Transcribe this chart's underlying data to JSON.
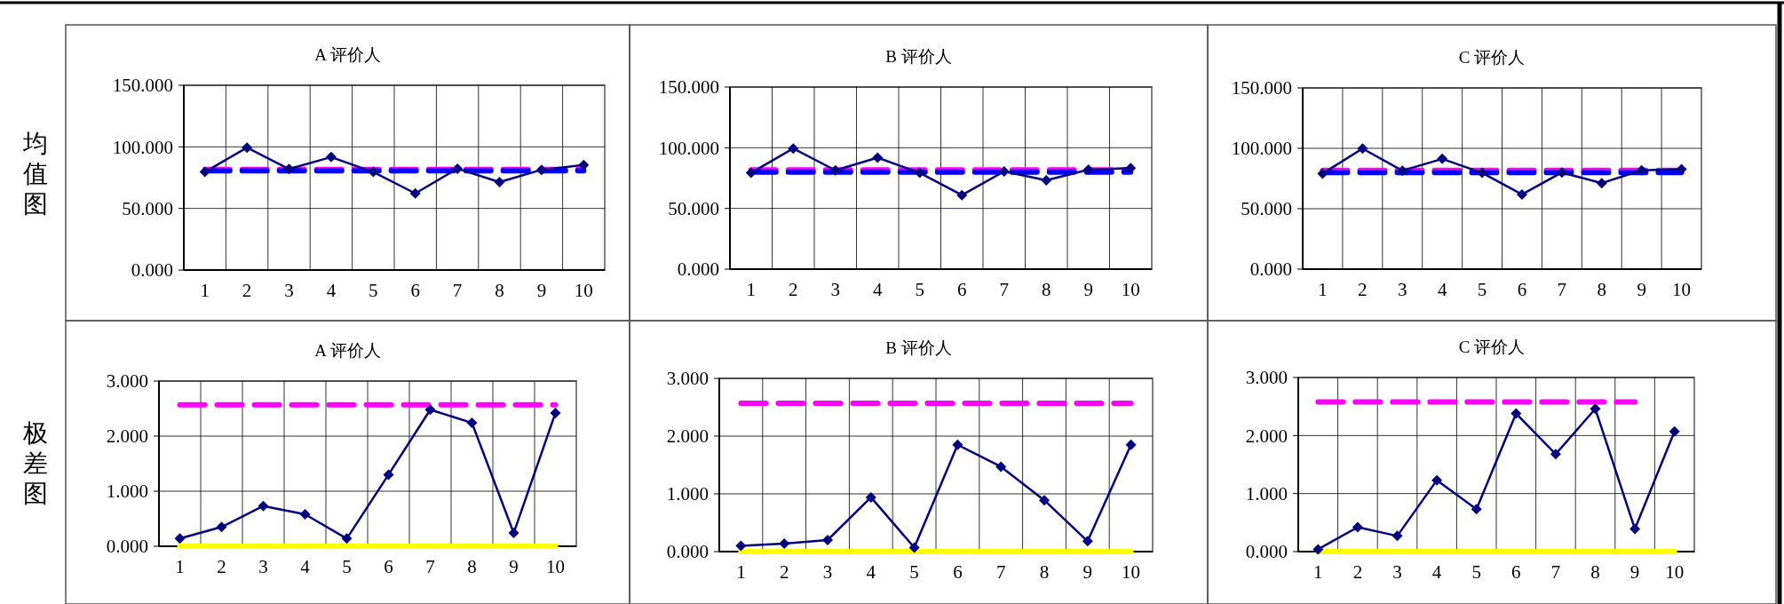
{
  "chart_data": [
    {
      "type": "line",
      "title": "A 评价人",
      "ylabel": "均值图",
      "categories": [
        "1",
        "2",
        "3",
        "4",
        "5",
        "6",
        "7",
        "8",
        "9",
        "10"
      ],
      "ylim": [
        0,
        150
      ],
      "yticks": [
        {
          "value": 0,
          "label": "0.000"
        },
        {
          "value": 50,
          "label": "50.000"
        },
        {
          "value": 100,
          "label": "100.000"
        },
        {
          "value": 150,
          "label": "150.000"
        }
      ],
      "grid": true,
      "series": [
        {
          "color": "#ff00ff",
          "line_style": "dashed",
          "marker": "none",
          "values": [
            81.7,
            81.7,
            81.7,
            81.7,
            81.7,
            81.7,
            81.7,
            81.7,
            81.7,
            81.7
          ]
        },
        {
          "color": "#0000ff",
          "line_style": "dashed",
          "marker": "none",
          "values": [
            80.5,
            80.5,
            80.5,
            80.5,
            80.5,
            80.5,
            80.5,
            80.5,
            80.5,
            80.5
          ]
        },
        {
          "color": "#000080",
          "line_style": "solid",
          "marker": "diamond",
          "values": [
            79.6,
            99.4,
            82,
            91.7,
            79.6,
            62.2,
            82.3,
            71.4,
            81.4,
            85.2
          ]
        }
      ]
    },
    {
      "type": "line",
      "title": "B 评价人",
      "categories": [
        "1",
        "2",
        "3",
        "4",
        "5",
        "6",
        "7",
        "8",
        "9",
        "10"
      ],
      "ylim": [
        0,
        150
      ],
      "yticks": [
        {
          "value": 0,
          "label": "0.000"
        },
        {
          "value": 50,
          "label": "50.000"
        },
        {
          "value": 100,
          "label": "100.000"
        },
        {
          "value": 150,
          "label": "150.000"
        }
      ],
      "grid": true,
      "series": [
        {
          "color": "#ff00ff",
          "line_style": "dashed",
          "marker": "none",
          "values": [
            81.7,
            81.7,
            81.7,
            81.7,
            81.7,
            81.7,
            81.7,
            81.7,
            81.7,
            81.7
          ]
        },
        {
          "color": "#0000ff",
          "line_style": "dashed",
          "marker": "none",
          "values": [
            80,
            80,
            80,
            80,
            80,
            80,
            80,
            80,
            80,
            80
          ]
        },
        {
          "color": "#000080",
          "line_style": "solid",
          "marker": "diamond",
          "values": [
            79.3,
            99.4,
            81.4,
            91.8,
            79.3,
            61,
            80.5,
            73.2,
            82,
            83.2
          ]
        }
      ]
    },
    {
      "type": "line",
      "title": "C 评价人",
      "categories": [
        "1",
        "2",
        "3",
        "4",
        "5",
        "6",
        "7",
        "8",
        "9",
        "10"
      ],
      "ylim": [
        0,
        150
      ],
      "yticks": [
        {
          "value": 0,
          "label": "0.000"
        },
        {
          "value": 50,
          "label": "50.000"
        },
        {
          "value": 100,
          "label": "100.000"
        },
        {
          "value": 150,
          "label": "150.000"
        }
      ],
      "grid": true,
      "series": [
        {
          "color": "#ff00ff",
          "line_style": "dashed",
          "marker": "none",
          "values": [
            81.8,
            81.8,
            81.8,
            81.8,
            81.8,
            81.8,
            81.8,
            81.8,
            81.8,
            81.8
          ]
        },
        {
          "color": "#0000ff",
          "line_style": "dashed",
          "marker": "none",
          "values": [
            80,
            80,
            80,
            80,
            80,
            80,
            80,
            80,
            80,
            80
          ]
        },
        {
          "color": "#000080",
          "line_style": "solid",
          "marker": "diamond",
          "values": [
            79.1,
            99.8,
            81.5,
            91.3,
            79.7,
            61.8,
            80,
            71.2,
            81.8,
            82.8
          ]
        }
      ]
    },
    {
      "type": "line",
      "title": "A 评价人",
      "ylabel": "极差图",
      "categories": [
        "1",
        "2",
        "3",
        "4",
        "5",
        "6",
        "7",
        "8",
        "9",
        "10"
      ],
      "ylim": [
        0,
        3
      ],
      "yticks": [
        {
          "value": 0,
          "label": "0.000"
        },
        {
          "value": 1,
          "label": "1.000"
        },
        {
          "value": 2,
          "label": "2.000"
        },
        {
          "value": 3,
          "label": "3.000"
        }
      ],
      "grid": true,
      "series": [
        {
          "color": "#ff00ff",
          "line_style": "dashed",
          "marker": "none",
          "values": [
            2.57,
            2.57,
            2.57,
            2.57,
            2.57,
            2.57,
            2.57,
            2.57,
            2.57,
            2.57
          ]
        },
        {
          "color": "#ffff00",
          "line_style": "solid",
          "marker": "none",
          "values": [
            0,
            0,
            0,
            0,
            0,
            0,
            0,
            0,
            0,
            0
          ]
        },
        {
          "color": "#000080",
          "line_style": "solid",
          "marker": "diamond",
          "values": [
            0.14,
            0.35,
            0.73,
            0.58,
            0.14,
            1.3,
            2.48,
            2.24,
            0.24,
            2.42
          ]
        }
      ]
    },
    {
      "type": "line",
      "title": "B 评价人",
      "categories": [
        "1",
        "2",
        "3",
        "4",
        "5",
        "6",
        "7",
        "8",
        "9",
        "10"
      ],
      "ylim": [
        0,
        3
      ],
      "yticks": [
        {
          "value": 0,
          "label": "0.000"
        },
        {
          "value": 1,
          "label": "1.000"
        },
        {
          "value": 2,
          "label": "2.000"
        },
        {
          "value": 3,
          "label": "3.000"
        }
      ],
      "grid": true,
      "series": [
        {
          "color": "#ff00ff",
          "line_style": "dashed",
          "marker": "none",
          "values": [
            2.57,
            2.57,
            2.57,
            2.57,
            2.57,
            2.57,
            2.57,
            2.57,
            2.57,
            2.57
          ]
        },
        {
          "color": "#ffff00",
          "line_style": "solid",
          "marker": "none",
          "values": [
            0,
            0,
            0,
            0,
            0,
            0,
            0,
            0,
            0,
            0
          ]
        },
        {
          "color": "#000080",
          "line_style": "solid",
          "marker": "diamond",
          "values": [
            0.1,
            0.14,
            0.2,
            0.94,
            0.07,
            1.85,
            1.47,
            0.89,
            0.18,
            1.85
          ]
        }
      ]
    },
    {
      "type": "line",
      "title": "C 评价人",
      "categories": [
        "1",
        "2",
        "3",
        "4",
        "5",
        "6",
        "7",
        "8",
        "9",
        "10"
      ],
      "ylim": [
        0,
        3
      ],
      "yticks": [
        {
          "value": 0,
          "label": "0.000"
        },
        {
          "value": 1,
          "label": "1.000"
        },
        {
          "value": 2,
          "label": "2.000"
        },
        {
          "value": 3,
          "label": "3.000"
        }
      ],
      "grid": true,
      "series": [
        {
          "color": "#ff00ff",
          "line_style": "dashed",
          "marker": "none",
          "values": [
            2.58,
            2.58,
            2.58,
            2.58,
            2.58,
            2.58,
            2.58,
            2.58,
            2.58,
            null
          ]
        },
        {
          "color": "#ffff00",
          "line_style": "solid",
          "marker": "none",
          "values": [
            0,
            0,
            0,
            0,
            0,
            0,
            0,
            0,
            0,
            0
          ]
        },
        {
          "color": "#000080",
          "line_style": "solid",
          "marker": "diamond",
          "values": [
            0.04,
            0.42,
            0.27,
            1.23,
            0.73,
            2.38,
            1.68,
            2.46,
            0.39,
            2.07
          ]
        }
      ]
    }
  ]
}
